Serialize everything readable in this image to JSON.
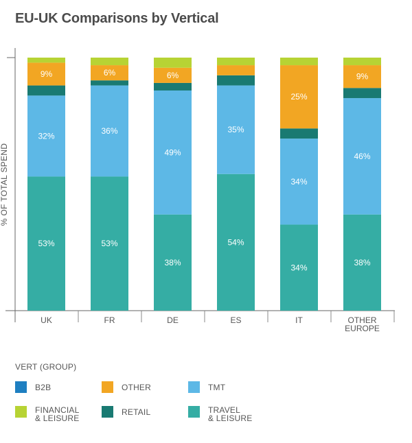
{
  "chart_data": {
    "type": "bar",
    "stacked": true,
    "title": "EU-UK Comparisons by Vertical",
    "ylabel": "% OF TOTAL SPEND",
    "ylim": [
      0,
      100
    ],
    "grid": false,
    "categories": [
      "UK",
      "FR",
      "DE",
      "ES",
      "IT",
      "OTHER\nEUROPE"
    ],
    "series": [
      {
        "name": "TRAVEL\n& LEISURE",
        "color": "#35ada4",
        "values": [
          53,
          53,
          38,
          54,
          34,
          38
        ],
        "labels": [
          "53%",
          "53%",
          "38%",
          "54%",
          "34%",
          "38%"
        ]
      },
      {
        "name": "TMT",
        "color": "#5db8e6",
        "values": [
          32,
          36,
          49,
          35,
          34,
          46
        ],
        "labels": [
          "32%",
          "36%",
          "49%",
          "35%",
          "34%",
          "46%"
        ]
      },
      {
        "name": "RETAIL",
        "color": "#197a72",
        "values": [
          4,
          2,
          3,
          4,
          4,
          4
        ],
        "labels": [
          "",
          "",
          "",
          "",
          "",
          ""
        ]
      },
      {
        "name": "OTHER",
        "color": "#f2a623",
        "values": [
          9,
          6,
          6,
          4,
          25,
          9
        ],
        "labels": [
          "9%",
          "6%",
          "6%",
          "",
          "25%",
          "9%"
        ]
      },
      {
        "name": "B2B",
        "color": "#1e7fc1",
        "values": [
          0,
          0,
          0,
          0,
          0,
          0
        ],
        "labels": [
          "",
          "",
          "",
          "",
          "",
          ""
        ]
      },
      {
        "name": "FINANCIAL\n& LEISURE",
        "color": "#b7d334",
        "values": [
          2,
          3,
          4,
          3,
          3,
          3
        ],
        "labels": [
          "",
          "",
          "",
          "",
          "",
          ""
        ]
      }
    ],
    "legend": {
      "title": "VERT (GROUP)",
      "placement": "bottom",
      "order": [
        "B2B",
        "OTHER",
        "TMT",
        "FINANCIAL\n& LEISURE",
        "RETAIL",
        "TRAVEL\n& LEISURE"
      ]
    }
  }
}
